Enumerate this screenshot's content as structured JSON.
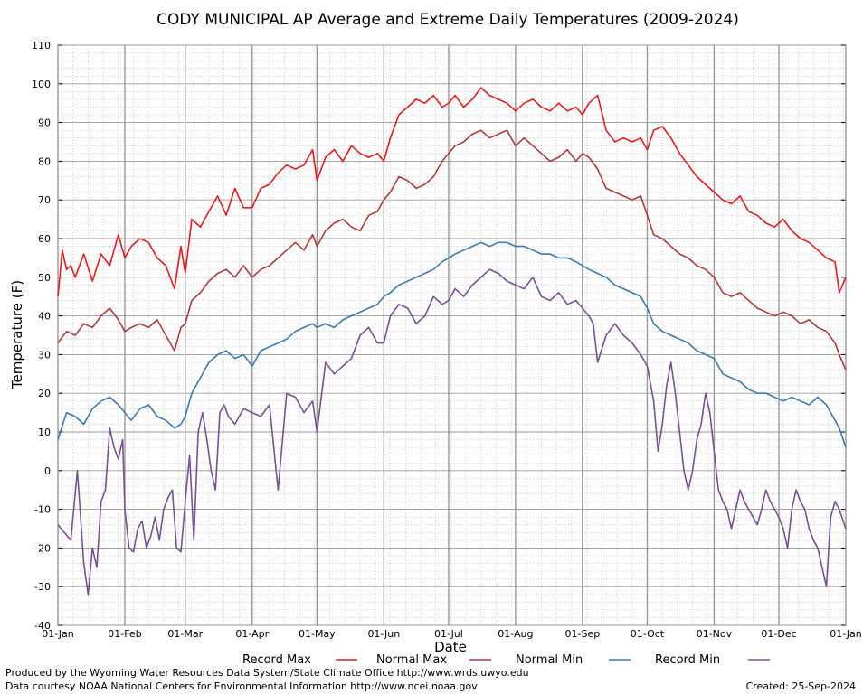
{
  "footer": {
    "produced": "Produced by the Wyoming Water Resources Data System/State Climate Office http://www.wrds.uwyo.edu",
    "courtesy": "Data courtesy NOAA National Centers for Environmental Information http://www.ncei.noaa.gov",
    "created": "Created: 25-Sep-2024"
  },
  "chart_data": {
    "type": "line",
    "title": "CODY MUNICIPAL AP Average and Extreme Daily Temperatures (2009-2024)",
    "xlabel": "Date",
    "ylabel": "Temperature (F)",
    "ylim": [
      -40,
      110
    ],
    "yticks": [
      -40,
      -30,
      -20,
      -10,
      0,
      10,
      20,
      30,
      40,
      50,
      60,
      70,
      80,
      90,
      100,
      110
    ],
    "xlim": [
      0,
      365
    ],
    "xticks": [
      {
        "label": "01-Jan",
        "day": 0
      },
      {
        "label": "01-Feb",
        "day": 31
      },
      {
        "label": "01-Mar",
        "day": 59
      },
      {
        "label": "01-Apr",
        "day": 90
      },
      {
        "label": "01-May",
        "day": 120
      },
      {
        "label": "01-Jun",
        "day": 151
      },
      {
        "label": "01-Jul",
        "day": 181
      },
      {
        "label": "01-Aug",
        "day": 212
      },
      {
        "label": "01-Sep",
        "day": 243
      },
      {
        "label": "01-Oct",
        "day": 273
      },
      {
        "label": "01-Nov",
        "day": 304
      },
      {
        "label": "01-Dec",
        "day": 334
      },
      {
        "label": "01-Jan",
        "day": 365
      }
    ],
    "grid": true,
    "legend_position": "bottom",
    "series": [
      {
        "name": "Record Max",
        "color": "#e8191b",
        "x": [
          0,
          2,
          4,
          6,
          8,
          12,
          16,
          20,
          24,
          28,
          31,
          34,
          38,
          42,
          46,
          50,
          54,
          57,
          59,
          62,
          66,
          70,
          74,
          78,
          82,
          86,
          90,
          94,
          98,
          102,
          106,
          110,
          114,
          118,
          120,
          124,
          128,
          132,
          136,
          140,
          144,
          148,
          151,
          154,
          158,
          162,
          166,
          170,
          174,
          178,
          181,
          184,
          188,
          192,
          196,
          200,
          204,
          208,
          212,
          216,
          220,
          224,
          228,
          232,
          236,
          240,
          243,
          246,
          250,
          254,
          258,
          262,
          266,
          270,
          273,
          276,
          280,
          284,
          288,
          292,
          296,
          300,
          304,
          308,
          312,
          316,
          320,
          324,
          328,
          332,
          336,
          340,
          344,
          348,
          352,
          356,
          360,
          362,
          365
        ],
        "y": [
          45,
          57,
          52,
          53,
          50,
          56,
          49,
          56,
          53,
          61,
          55,
          58,
          60,
          59,
          55,
          53,
          47,
          58,
          51,
          65,
          63,
          67,
          71,
          66,
          73,
          68,
          68,
          73,
          74,
          77,
          79,
          78,
          79,
          83,
          75,
          81,
          83,
          80,
          84,
          82,
          81,
          82,
          80,
          86,
          92,
          94,
          96,
          95,
          97,
          94,
          95,
          97,
          94,
          96,
          99,
          97,
          96,
          95,
          93,
          95,
          96,
          94,
          93,
          95,
          93,
          94,
          92,
          95,
          97,
          88,
          85,
          86,
          85,
          86,
          83,
          88,
          89,
          86,
          82,
          79,
          76,
          74,
          72,
          70,
          69,
          71,
          67,
          66,
          64,
          63,
          65,
          62,
          60,
          59,
          57,
          55,
          54,
          46,
          50
        ],
        "line_width": 1.6
      },
      {
        "name": "Normal Max",
        "color": "#b03a3a",
        "x": [
          0,
          4,
          8,
          12,
          16,
          20,
          24,
          28,
          31,
          34,
          38,
          42,
          46,
          50,
          54,
          57,
          59,
          62,
          66,
          70,
          74,
          78,
          82,
          86,
          90,
          94,
          98,
          102,
          106,
          110,
          114,
          118,
          120,
          124,
          128,
          132,
          136,
          140,
          144,
          148,
          151,
          154,
          158,
          162,
          166,
          170,
          174,
          178,
          181,
          184,
          188,
          192,
          196,
          200,
          204,
          208,
          212,
          216,
          220,
          224,
          228,
          232,
          236,
          240,
          243,
          246,
          250,
          254,
          258,
          262,
          266,
          270,
          273,
          276,
          280,
          284,
          288,
          292,
          296,
          300,
          304,
          308,
          312,
          316,
          320,
          324,
          328,
          332,
          336,
          340,
          344,
          348,
          352,
          356,
          360,
          362,
          365
        ],
        "y": [
          33,
          36,
          35,
          38,
          37,
          40,
          42,
          39,
          36,
          37,
          38,
          37,
          39,
          35,
          31,
          37,
          38,
          44,
          46,
          49,
          51,
          52,
          50,
          53,
          50,
          52,
          53,
          55,
          57,
          59,
          57,
          61,
          58,
          62,
          64,
          65,
          63,
          62,
          66,
          67,
          70,
          72,
          76,
          75,
          73,
          74,
          76,
          80,
          82,
          84,
          85,
          87,
          88,
          86,
          87,
          88,
          84,
          86,
          84,
          82,
          80,
          81,
          83,
          80,
          82,
          81,
          78,
          73,
          72,
          71,
          70,
          71,
          66,
          61,
          60,
          58,
          56,
          55,
          53,
          52,
          50,
          46,
          45,
          46,
          44,
          42,
          41,
          40,
          41,
          40,
          38,
          39,
          37,
          36,
          33,
          30,
          26
        ],
        "line_width": 1.6
      },
      {
        "name": "Normal Min",
        "color": "#3d78b4",
        "x": [
          0,
          4,
          8,
          12,
          16,
          20,
          24,
          28,
          31,
          34,
          38,
          42,
          46,
          50,
          54,
          57,
          59,
          62,
          66,
          70,
          74,
          78,
          82,
          86,
          90,
          94,
          98,
          102,
          106,
          110,
          114,
          118,
          120,
          124,
          128,
          132,
          136,
          140,
          144,
          148,
          151,
          154,
          158,
          162,
          166,
          170,
          174,
          178,
          181,
          184,
          188,
          192,
          196,
          200,
          204,
          208,
          212,
          216,
          220,
          224,
          228,
          232,
          236,
          240,
          243,
          246,
          250,
          254,
          258,
          262,
          266,
          270,
          273,
          276,
          280,
          284,
          288,
          292,
          296,
          300,
          304,
          308,
          312,
          316,
          320,
          324,
          328,
          332,
          336,
          340,
          344,
          348,
          352,
          356,
          360,
          362,
          365
        ],
        "y": [
          8,
          15,
          14,
          12,
          16,
          18,
          19,
          17,
          15,
          13,
          16,
          17,
          14,
          13,
          11,
          12,
          14,
          20,
          24,
          28,
          30,
          31,
          29,
          30,
          27,
          31,
          32,
          33,
          34,
          36,
          37,
          38,
          37,
          38,
          37,
          39,
          40,
          41,
          42,
          43,
          45,
          46,
          48,
          49,
          50,
          51,
          52,
          54,
          55,
          56,
          57,
          58,
          59,
          58,
          59,
          59,
          58,
          58,
          57,
          56,
          56,
          55,
          55,
          54,
          53,
          52,
          51,
          50,
          48,
          47,
          46,
          45,
          42,
          38,
          36,
          35,
          34,
          33,
          31,
          30,
          29,
          25,
          24,
          23,
          21,
          20,
          20,
          19,
          18,
          19,
          18,
          17,
          19,
          17,
          13,
          11,
          6
        ],
        "line_width": 1.6
      },
      {
        "name": "Record Min",
        "color": "#7a4f96",
        "x": [
          0,
          3,
          6,
          9,
          12,
          14,
          16,
          18,
          20,
          22,
          24,
          26,
          28,
          30,
          31,
          33,
          35,
          37,
          39,
          41,
          43,
          45,
          47,
          49,
          51,
          53,
          55,
          57,
          59,
          61,
          63,
          65,
          67,
          69,
          71,
          73,
          75,
          77,
          79,
          82,
          86,
          90,
          94,
          98,
          102,
          106,
          110,
          114,
          118,
          120,
          124,
          128,
          132,
          136,
          140,
          144,
          148,
          151,
          154,
          158,
          162,
          166,
          170,
          174,
          178,
          181,
          184,
          188,
          192,
          196,
          200,
          204,
          208,
          212,
          216,
          220,
          224,
          228,
          232,
          236,
          240,
          243,
          246,
          248,
          250,
          254,
          258,
          262,
          266,
          270,
          273,
          276,
          278,
          280,
          282,
          284,
          286,
          288,
          290,
          292,
          294,
          296,
          298,
          300,
          302,
          304,
          306,
          308,
          310,
          312,
          314,
          316,
          318,
          320,
          322,
          324,
          326,
          328,
          330,
          332,
          334,
          336,
          338,
          340,
          342,
          344,
          346,
          348,
          350,
          352,
          354,
          356,
          358,
          360,
          362,
          365
        ],
        "y": [
          -14,
          -16,
          -18,
          0,
          -24,
          -32,
          -20,
          -25,
          -8,
          -5,
          11,
          6,
          3,
          8,
          -10,
          -20,
          -21,
          -15,
          -13,
          -20,
          -17,
          -12,
          -18,
          -10,
          -7,
          -5,
          -20,
          -21,
          -8,
          4,
          -18,
          10,
          15,
          8,
          0,
          -5,
          15,
          17,
          14,
          12,
          16,
          15,
          14,
          17,
          -5,
          20,
          19,
          15,
          18,
          10,
          28,
          25,
          27,
          29,
          35,
          37,
          33,
          33,
          40,
          43,
          42,
          38,
          40,
          45,
          43,
          44,
          47,
          45,
          48,
          50,
          52,
          51,
          49,
          48,
          47,
          50,
          45,
          44,
          46,
          43,
          44,
          42,
          40,
          38,
          28,
          35,
          38,
          35,
          33,
          30,
          27,
          18,
          5,
          12,
          22,
          28,
          20,
          10,
          0,
          -5,
          0,
          8,
          12,
          20,
          15,
          5,
          -5,
          -8,
          -10,
          -15,
          -10,
          -5,
          -8,
          -10,
          -12,
          -14,
          -10,
          -5,
          -8,
          -10,
          -12,
          -15,
          -20,
          -10,
          -5,
          -8,
          -10,
          -15,
          -18,
          -20,
          -25,
          -30,
          -12,
          -8,
          -10,
          -15
        ],
        "line_width": 1.6
      }
    ]
  }
}
